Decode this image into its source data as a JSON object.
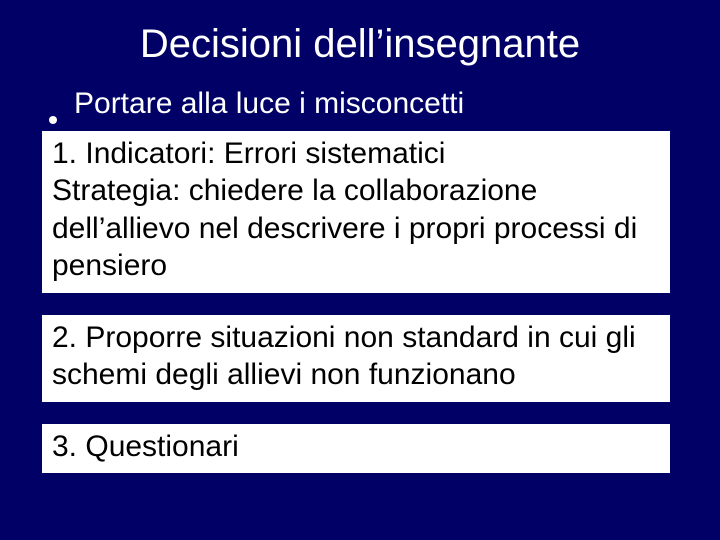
{
  "slide": {
    "background_color": "#000066",
    "text_color": "#ffffff",
    "box_background": "#ffffff",
    "box_text_color": "#000000",
    "title_fontsize": 40,
    "body_fontsize": 30,
    "title": "Decisioni dell’insegnante",
    "bullet": "Portare alla luce i misconcetti",
    "box1": "1. Indicatori: Errori sistematici\nStrategia: chiedere la collaborazione dell’allievo nel descrivere i propri processi di pensiero",
    "box2": "2. Proporre situazioni non standard in cui gli schemi degli allievi non funzionano",
    "box3": "3. Questionari"
  }
}
